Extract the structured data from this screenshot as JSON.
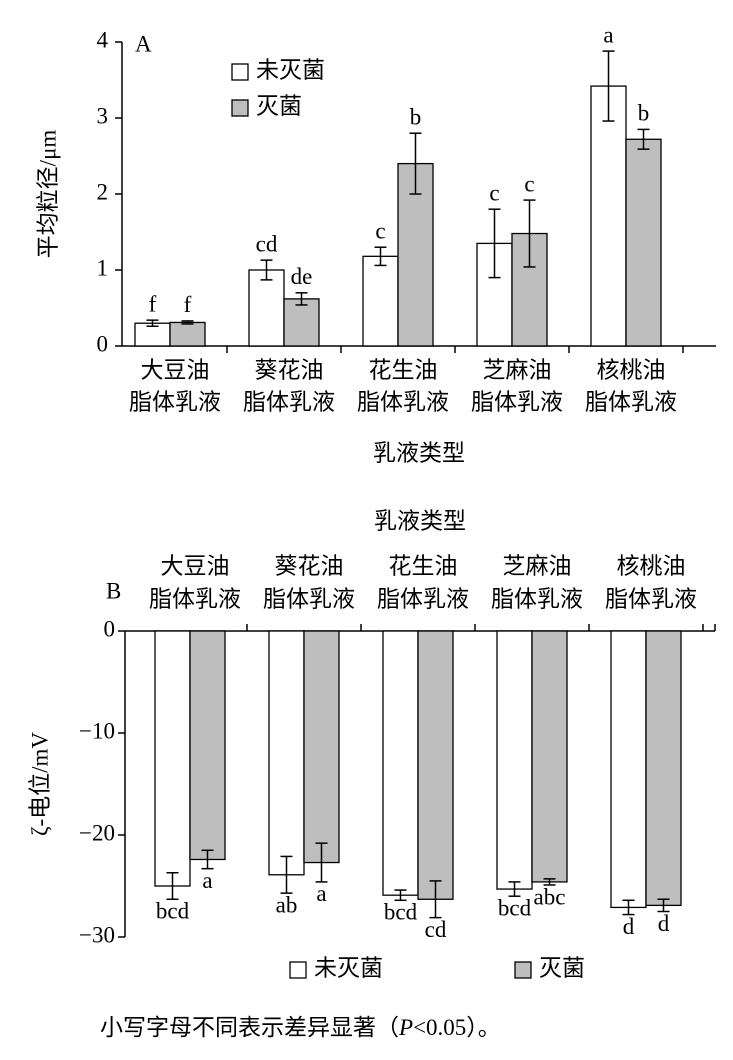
{
  "chart_data": [
    {
      "type": "bar",
      "label": "A",
      "ylabel": "平均粒径/μm",
      "xlabel": "乳液类型",
      "categories": [
        [
          "大豆油",
          "脂体乳液"
        ],
        [
          "葵花油",
          "脂体乳液"
        ],
        [
          "花生油",
          "脂体乳液"
        ],
        [
          "芝麻油",
          "脂体乳液"
        ],
        [
          "核桃油",
          "脂体乳液"
        ]
      ],
      "series": [
        {
          "name": "未灭菌",
          "color": "#ffffff",
          "values": [
            0.3,
            1.0,
            1.18,
            1.35,
            3.42
          ],
          "errors": [
            0.04,
            0.13,
            0.12,
            0.45,
            0.46
          ],
          "letters": [
            "f",
            "cd",
            "c",
            "c",
            "a"
          ]
        },
        {
          "name": "灭菌",
          "color": "#bebebe",
          "values": [
            0.31,
            0.62,
            2.4,
            1.48,
            2.72
          ],
          "errors": [
            0.02,
            0.08,
            0.4,
            0.44,
            0.13
          ],
          "letters": [
            "f",
            "de",
            "b",
            "c",
            "b"
          ]
        }
      ],
      "ylim": [
        0,
        4
      ],
      "yticks": [
        0,
        1,
        2,
        3,
        4
      ],
      "legend": "upper-left",
      "xaxis": "bottom"
    },
    {
      "type": "bar",
      "label": "B",
      "ylabel": "ζ-电位/mV",
      "xlabel": "乳液类型",
      "categories": [
        [
          "大豆油",
          "脂体乳液"
        ],
        [
          "葵花油",
          "脂体乳液"
        ],
        [
          "花生油",
          "脂体乳液"
        ],
        [
          "芝麻油",
          "脂体乳液"
        ],
        [
          "核桃油",
          "脂体乳液"
        ]
      ],
      "series": [
        {
          "name": "未灭菌",
          "color": "#ffffff",
          "values": [
            -25,
            -23.9,
            -25.9,
            -25.3,
            -27.1
          ],
          "errors": [
            1.3,
            1.8,
            0.5,
            0.7,
            0.7
          ],
          "letters": [
            "bcd",
            "ab",
            "bcd",
            "bcd",
            "d"
          ]
        },
        {
          "name": "灭菌",
          "color": "#bebebe",
          "values": [
            -22.4,
            -22.7,
            -26.3,
            -24.6,
            -26.9
          ],
          "errors": [
            0.9,
            1.9,
            1.8,
            0.3,
            0.6
          ],
          "letters": [
            "a",
            "a",
            "cd",
            "abc",
            "d"
          ]
        }
      ],
      "ylim": [
        -30,
        0
      ],
      "yticks": [
        0,
        {
          "value": -10,
          "label": "−10"
        },
        {
          "value": -20,
          "label": "−20"
        },
        {
          "value": -30,
          "label": "−30"
        }
      ],
      "legend": "bottom",
      "xaxis": "top"
    }
  ],
  "note": [
    "小写字母不同表示差异显著（",
    "P",
    "<0.05）。"
  ]
}
